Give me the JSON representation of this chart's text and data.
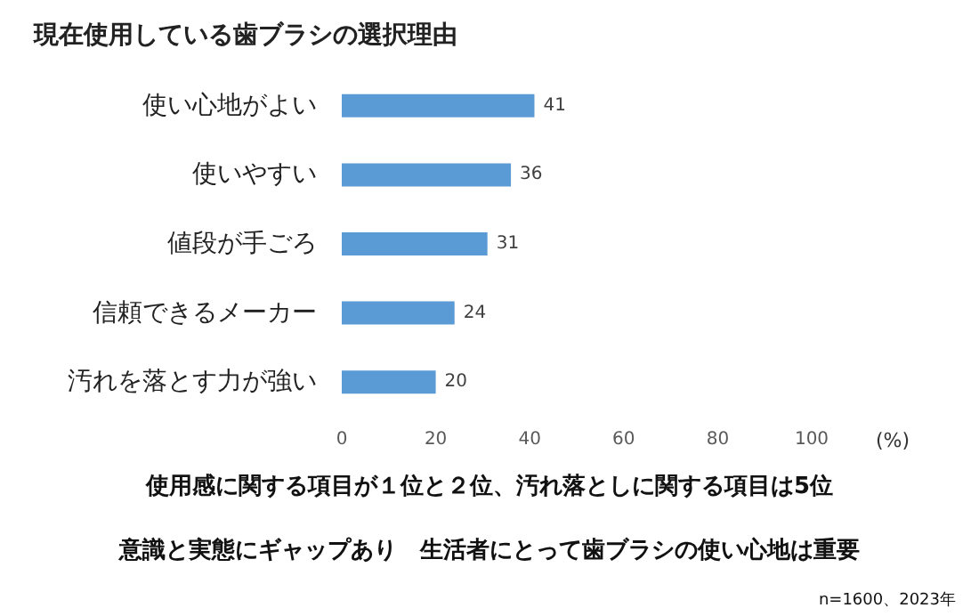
{
  "chart_data": {
    "type": "bar",
    "orientation": "horizontal",
    "title": "現在使用している歯ブラシの選択理由",
    "categories": [
      "使い心地がよい",
      "使いやすい",
      "値段が手ごろ",
      "信頼できるメーカー",
      "汚れを落とす力が強い"
    ],
    "values": [
      41,
      36,
      31,
      24,
      20
    ],
    "color": "#5b9bd5",
    "data_labels": true,
    "xlim": [
      0,
      100
    ],
    "xticks": [
      0,
      20,
      40,
      60,
      80,
      100
    ],
    "xlabel": "(%)",
    "grid": false,
    "annotations": [
      "使用感に関する項目が１位と２位、汚れ落としに関する項目は5位",
      "意識と実態にギャップあり　生活者にとって歯ブラシの使い心地は重要",
      "n=1600、2023年"
    ]
  }
}
